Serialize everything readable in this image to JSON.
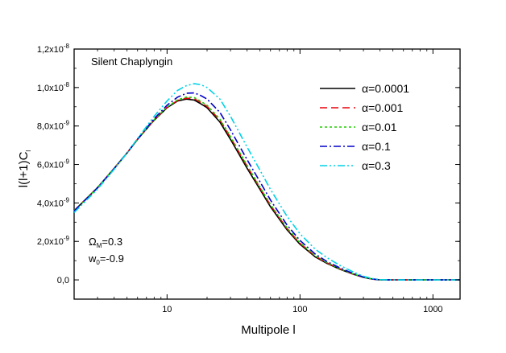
{
  "chart_data": {
    "type": "line",
    "title": "Silent Chaplyngin",
    "xlabel": "Multipole l",
    "ylabel_main": "l(l+1)C",
    "ylabel_sub": "l",
    "xscale": "log",
    "xlim": [
      2,
      1600
    ],
    "ylim": [
      -1e-09,
      1.2e-08
    ],
    "x_ticks": [
      {
        "value": 10,
        "label": "10"
      },
      {
        "value": 100,
        "label": "100"
      },
      {
        "value": 1000,
        "label": "1000"
      }
    ],
    "y_ticks": [
      {
        "value": 0,
        "label": "0,0",
        "exp": ""
      },
      {
        "value": 2e-09,
        "label": "2,0x10",
        "exp": "-9"
      },
      {
        "value": 4e-09,
        "label": "4,0x10",
        "exp": "-9"
      },
      {
        "value": 6e-09,
        "label": "6,0x10",
        "exp": "-9"
      },
      {
        "value": 8e-09,
        "label": "8,0x10",
        "exp": "-9"
      },
      {
        "value": 1e-08,
        "label": "1,0x10",
        "exp": "-8"
      },
      {
        "value": 1.2e-08,
        "label": "1,2x10",
        "exp": "-8"
      }
    ],
    "legend_position": "top-right",
    "annotations": {
      "omega_symbol": "Ω",
      "omega_sub": "M",
      "omega_value": "=0.3",
      "w_symbol": "w",
      "w_sub": "0",
      "w_value": "=-0.9"
    },
    "series": [
      {
        "name": "α=0.0001",
        "color": "#000000",
        "dash": "solid",
        "x": [
          2,
          3,
          4,
          5,
          6,
          8,
          10,
          12,
          14,
          16,
          18,
          20,
          25,
          30,
          40,
          50,
          60,
          80,
          100,
          130,
          160,
          200,
          250,
          300,
          350,
          400,
          500,
          700,
          1000,
          1600
        ],
        "y": [
          3.6e-09,
          4.8e-09,
          5.8e-09,
          6.6e-09,
          7.3e-09,
          8.3e-09,
          8.95e-09,
          9.3e-09,
          9.4e-09,
          9.35e-09,
          9.15e-09,
          8.95e-09,
          8.2e-09,
          7.3e-09,
          5.8e-09,
          4.7e-09,
          3.8e-09,
          2.6e-09,
          1.85e-09,
          1.2e-09,
          8.5e-10,
          5.5e-10,
          3e-10,
          1.3e-10,
          4e-11,
          0,
          0,
          0,
          0,
          0
        ]
      },
      {
        "name": "α=0.001",
        "color": "#e8000b",
        "dash": "dashed",
        "x": [
          2,
          3,
          4,
          5,
          6,
          8,
          10,
          12,
          14,
          16,
          18,
          20,
          25,
          30,
          40,
          50,
          60,
          80,
          100,
          130,
          160,
          200,
          250,
          300,
          350,
          400,
          500,
          700,
          1000,
          1600
        ],
        "y": [
          3.6e-09,
          4.8e-09,
          5.8e-09,
          6.6e-09,
          7.3e-09,
          8.32e-09,
          8.97e-09,
          9.33e-09,
          9.45e-09,
          9.42e-09,
          9.22e-09,
          9.02e-09,
          8.3e-09,
          7.4e-09,
          5.9e-09,
          4.78e-09,
          3.88e-09,
          2.66e-09,
          1.9e-09,
          1.24e-09,
          8.8e-10,
          5.7e-10,
          3.1e-10,
          1.4e-10,
          4e-11,
          0,
          0,
          0,
          0,
          0
        ]
      },
      {
        "name": "α=0.01",
        "color": "#22cc00",
        "dash": "dotted",
        "x": [
          2,
          3,
          4,
          5,
          6,
          8,
          10,
          12,
          14,
          16,
          18,
          20,
          25,
          30,
          40,
          50,
          60,
          80,
          100,
          130,
          160,
          200,
          250,
          300,
          350,
          400,
          500,
          700,
          1000,
          1600
        ],
        "y": [
          3.6e-09,
          4.8e-09,
          5.8e-09,
          6.6e-09,
          7.3e-09,
          8.33e-09,
          8.98e-09,
          9.36e-09,
          9.5e-09,
          9.48e-09,
          9.28e-09,
          9.08e-09,
          8.35e-09,
          7.45e-09,
          5.95e-09,
          4.82e-09,
          3.92e-09,
          2.7e-09,
          1.93e-09,
          1.26e-09,
          8.9e-10,
          5.8e-10,
          3.2e-10,
          1.4e-10,
          5e-11,
          0,
          0,
          0,
          0,
          0
        ]
      },
      {
        "name": "α=0.1",
        "color": "#0000c8",
        "dash": "dashdot",
        "x": [
          2,
          3,
          4,
          5,
          6,
          8,
          10,
          12,
          14,
          16,
          18,
          20,
          25,
          30,
          40,
          50,
          60,
          80,
          100,
          130,
          160,
          200,
          250,
          300,
          350,
          400,
          500,
          700,
          1000,
          1600
        ],
        "y": [
          3.58e-09,
          4.78e-09,
          5.78e-09,
          6.6e-09,
          7.32e-09,
          8.38e-09,
          9.08e-09,
          9.5e-09,
          9.7e-09,
          9.72e-09,
          9.58e-09,
          9.4e-09,
          8.7e-09,
          7.8e-09,
          6.25e-09,
          5.1e-09,
          4.15e-09,
          2.85e-09,
          2.05e-09,
          1.35e-09,
          9.5e-10,
          6.2e-10,
          3.4e-10,
          1.5e-10,
          5e-11,
          0,
          0,
          0,
          0,
          0
        ]
      },
      {
        "name": "α=0.3",
        "color": "#00d2e6",
        "dash": "dashdotdot",
        "x": [
          2,
          3,
          4,
          5,
          6,
          8,
          10,
          12,
          14,
          16,
          18,
          20,
          25,
          30,
          40,
          50,
          60,
          80,
          100,
          130,
          160,
          200,
          250,
          300,
          350,
          400,
          500,
          700,
          1000,
          1600
        ],
        "y": [
          3.5e-09,
          4.72e-09,
          5.75e-09,
          6.6e-09,
          7.35e-09,
          8.5e-09,
          9.3e-09,
          9.85e-09,
          1.01e-08,
          1.02e-08,
          1.015e-08,
          1e-08,
          9.4e-09,
          8.5e-09,
          6.9e-09,
          5.7e-09,
          4.7e-09,
          3.3e-09,
          2.4e-09,
          1.6e-09,
          1.15e-09,
          7.5e-10,
          4.2e-10,
          1.9e-10,
          7e-11,
          1e-11,
          0,
          0,
          0,
          0
        ]
      }
    ]
  }
}
